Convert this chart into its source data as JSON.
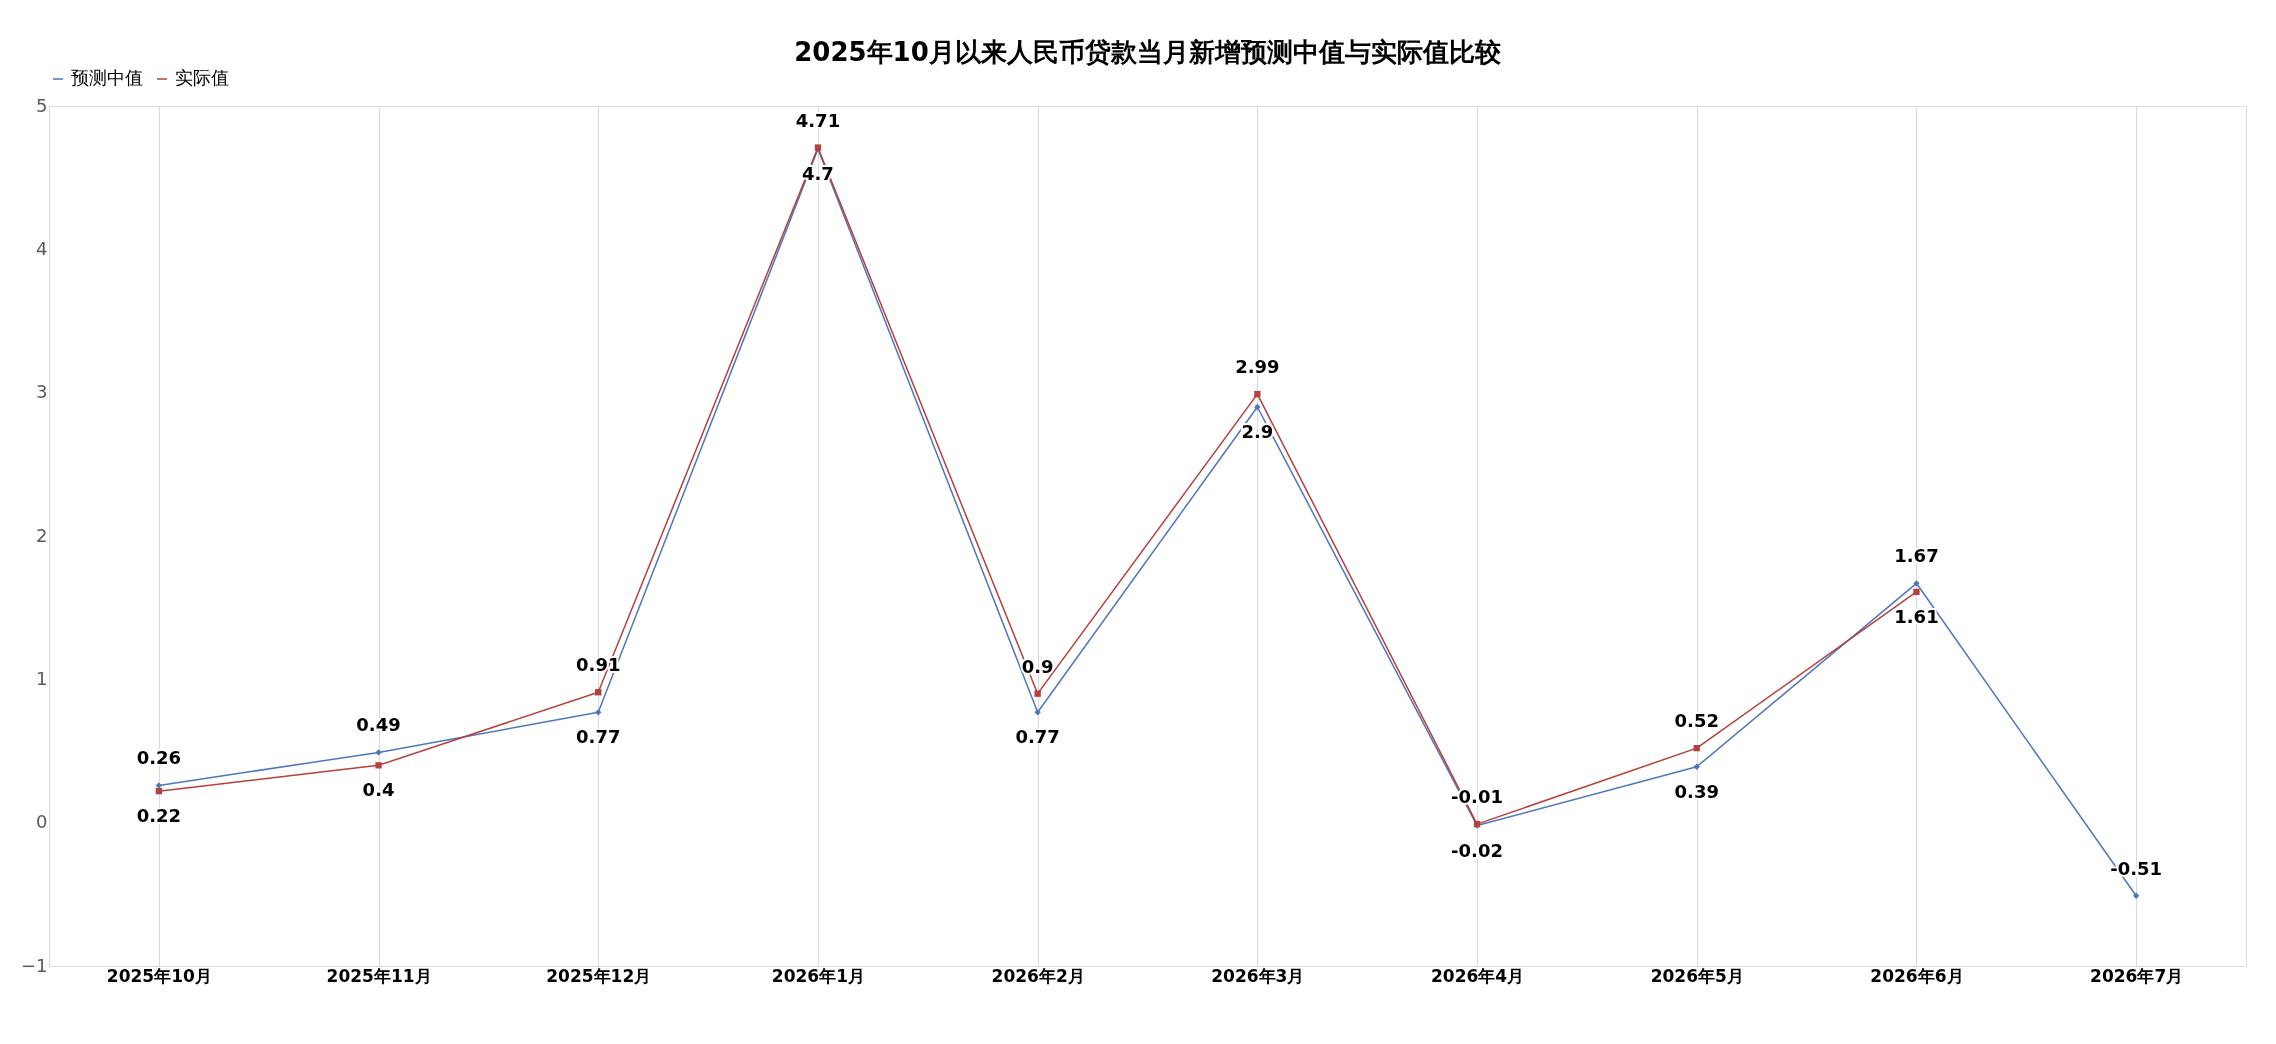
{
  "chart_data": {
    "type": "line",
    "title": "2025年10月以来人民币贷款当月新增预测中值与实际值比较",
    "categories": [
      "2025年10月",
      "2025年11月",
      "2025年12月",
      "2026年1月",
      "2026年2月",
      "2026年3月",
      "2026年4月",
      "2026年5月",
      "2026年6月",
      "2026年7月"
    ],
    "series": [
      {
        "name": "预测中值",
        "color": "#4f75bd",
        "marker": "diamond",
        "values": [
          0.26,
          0.49,
          0.77,
          4.7,
          0.77,
          2.9,
          -0.02,
          0.39,
          1.67,
          -0.51
        ]
      },
      {
        "name": "实际值",
        "color": "#b5403c",
        "marker": "square",
        "values": [
          0.22,
          0.4,
          0.91,
          4.71,
          0.9,
          2.99,
          -0.01,
          0.52,
          1.61,
          null
        ]
      }
    ],
    "ylim": [
      -1,
      5
    ],
    "yticks": [
      -1,
      0,
      1,
      2,
      3,
      4,
      5
    ],
    "grid": "x",
    "legend": "top",
    "data_labels": true
  }
}
